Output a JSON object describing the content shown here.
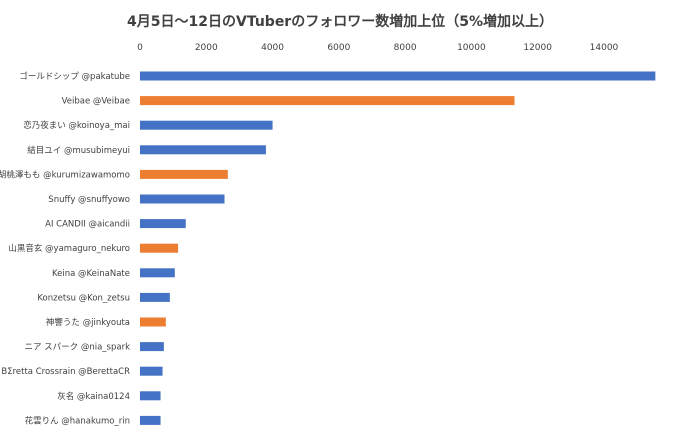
{
  "chart_data": {
    "type": "bar",
    "orientation": "horizontal",
    "title": "4月5日～12日のVTuberのフォロワー数増加上位（5%増加以上）",
    "xlabel": "",
    "ylabel": "",
    "xlim": [
      0,
      15600
    ],
    "x_ticks": [
      "0",
      "2000",
      "4000",
      "6000",
      "8000",
      "10000",
      "12000",
      "14000"
    ],
    "x_axis_position": "top",
    "grid": false,
    "legend": "none",
    "colors": {
      "blue": "#4472c4",
      "orange": "#ed7d31"
    },
    "categories": [
      "ゴールドシップ @pakatube",
      "Veibae @Veibae",
      "恋乃夜まい @koinoya_mai",
      "結目ユイ @musubimeyui",
      "胡桃澤もも @kurumizawamomo",
      "Snuffy @snuffyowo",
      "AI CANDII @aicandii",
      "山黒音玄 @yamaguro_nekuro",
      "Keina @KeinaNate",
      "Konzetsu @Kon_zetsu",
      "神響うた @jinkyouta",
      "ニア スパーク @nia_spark",
      "BΣretta Crossrain @BerettaCR",
      "灰名 @kaina0124",
      "花雲りん @hanakumo_rin"
    ],
    "values": [
      15550,
      11300,
      4000,
      3800,
      2650,
      2550,
      1380,
      1150,
      1050,
      900,
      780,
      720,
      680,
      620,
      620
    ],
    "bar_colors": [
      "blue",
      "orange",
      "blue",
      "blue",
      "orange",
      "blue",
      "blue",
      "orange",
      "blue",
      "blue",
      "orange",
      "blue",
      "blue",
      "blue",
      "blue"
    ]
  }
}
